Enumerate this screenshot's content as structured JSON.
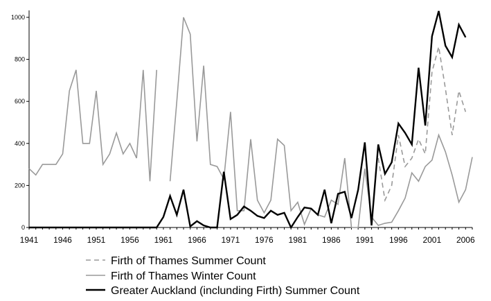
{
  "chart_data": {
    "type": "line",
    "title": "",
    "xlabel": "",
    "ylabel": "",
    "xlim": [
      1941,
      2007
    ],
    "ylim": [
      0,
      1000
    ],
    "y_ticks": [
      0,
      200,
      400,
      600,
      800,
      1000
    ],
    "y_tick_labels": [
      "0",
      "200",
      "400",
      "600",
      "800",
      "1000"
    ],
    "x_ticks": [
      1941,
      1946,
      1951,
      1956,
      1961,
      1966,
      1971,
      1976,
      1981,
      1986,
      1991,
      1996,
      2001,
      2006
    ],
    "x_tick_labels": [
      "1941",
      "1946",
      "1951",
      "1956",
      "1961",
      "1966",
      "1971",
      "1976",
      "1981",
      "1986",
      "1991",
      "1996",
      "2001",
      "2006"
    ],
    "grid": false,
    "legend_position": "bottom",
    "series": [
      {
        "name": "Firth of Thames Summer Count",
        "color": "#999999",
        "dash": "dashed",
        "points": [
          [
            1993,
            330
          ],
          [
            1994,
            130
          ],
          [
            1995,
            200
          ],
          [
            1996,
            440
          ],
          [
            1997,
            290
          ],
          [
            1998,
            330
          ],
          [
            1999,
            420
          ],
          [
            2000,
            350
          ],
          [
            2001,
            740
          ],
          [
            2002,
            860
          ],
          [
            2003,
            660
          ],
          [
            2004,
            440
          ],
          [
            2005,
            650
          ],
          [
            2006,
            550
          ]
        ]
      },
      {
        "name": "Firth of Thames Winter Count",
        "color": "#999999",
        "dash": "solid",
        "segments": [
          [
            [
              1941,
              280
            ],
            [
              1942,
              250
            ],
            [
              1943,
              300
            ],
            [
              1944,
              300
            ],
            [
              1945,
              300
            ],
            [
              1946,
              350
            ],
            [
              1947,
              650
            ],
            [
              1948,
              750
            ],
            [
              1949,
              400
            ],
            [
              1950,
              400
            ],
            [
              1951,
              650
            ],
            [
              1952,
              300
            ],
            [
              1953,
              350
            ],
            [
              1954,
              450
            ],
            [
              1955,
              350
            ],
            [
              1956,
              400
            ],
            [
              1957,
              330
            ],
            [
              1958,
              750
            ],
            [
              1959,
              220
            ],
            [
              1960,
              750
            ]
          ],
          [
            [
              1962,
              220
            ],
            [
              1963,
              600
            ],
            [
              1964,
              1000
            ],
            [
              1965,
              920
            ],
            [
              1966,
              410
            ],
            [
              1967,
              770
            ],
            [
              1968,
              300
            ],
            [
              1969,
              290
            ],
            [
              1970,
              230
            ],
            [
              1971,
              550
            ],
            [
              1972,
              80
            ],
            [
              1973,
              80
            ],
            [
              1974,
              420
            ],
            [
              1975,
              130
            ],
            [
              1976,
              70
            ],
            [
              1977,
              130
            ],
            [
              1978,
              420
            ],
            [
              1979,
              390
            ],
            [
              1980,
              80
            ],
            [
              1981,
              120
            ],
            [
              1982,
              15
            ],
            [
              1983,
              90
            ],
            [
              1984,
              60
            ],
            [
              1985,
              50
            ],
            [
              1986,
              130
            ],
            [
              1987,
              110
            ],
            [
              1988,
              330
            ],
            [
              1989,
              0
            ],
            [
              1990,
              0
            ],
            [
              1991,
              280
            ],
            [
              1992,
              50
            ],
            [
              1993,
              10
            ],
            [
              1994,
              20
            ],
            [
              1995,
              25
            ],
            [
              1996,
              80
            ],
            [
              1997,
              140
            ],
            [
              1998,
              260
            ],
            [
              1999,
              220
            ],
            [
              2000,
              290
            ],
            [
              2001,
              320
            ],
            [
              2002,
              440
            ],
            [
              2003,
              360
            ],
            [
              2004,
              250
            ],
            [
              2005,
              120
            ],
            [
              2006,
              180
            ],
            [
              2007,
              335
            ]
          ]
        ]
      },
      {
        "name": "Greater Auckland (inclunding Firth) Summer Count",
        "color": "#000000",
        "dash": "solid",
        "points": [
          [
            1941,
            0
          ],
          [
            1942,
            0
          ],
          [
            1943,
            0
          ],
          [
            1944,
            0
          ],
          [
            1945,
            0
          ],
          [
            1946,
            0
          ],
          [
            1947,
            0
          ],
          [
            1948,
            0
          ],
          [
            1949,
            0
          ],
          [
            1950,
            0
          ],
          [
            1951,
            0
          ],
          [
            1952,
            0
          ],
          [
            1953,
            0
          ],
          [
            1954,
            0
          ],
          [
            1955,
            0
          ],
          [
            1956,
            0
          ],
          [
            1957,
            0
          ],
          [
            1958,
            0
          ],
          [
            1959,
            0
          ],
          [
            1960,
            0
          ],
          [
            1961,
            50
          ],
          [
            1962,
            150
          ],
          [
            1963,
            60
          ],
          [
            1964,
            180
          ],
          [
            1965,
            5
          ],
          [
            1966,
            30
          ],
          [
            1967,
            10
          ],
          [
            1968,
            0
          ],
          [
            1969,
            0
          ],
          [
            1970,
            265
          ],
          [
            1971,
            40
          ],
          [
            1972,
            60
          ],
          [
            1973,
            100
          ],
          [
            1974,
            80
          ],
          [
            1975,
            55
          ],
          [
            1976,
            45
          ],
          [
            1977,
            80
          ],
          [
            1978,
            60
          ],
          [
            1979,
            70
          ],
          [
            1980,
            0
          ],
          [
            1981,
            50
          ],
          [
            1982,
            95
          ],
          [
            1983,
            90
          ],
          [
            1984,
            60
          ],
          [
            1985,
            180
          ],
          [
            1986,
            20
          ],
          [
            1987,
            160
          ],
          [
            1988,
            170
          ],
          [
            1989,
            45
          ],
          [
            1990,
            180
          ],
          [
            1991,
            405
          ],
          [
            1992,
            10
          ],
          [
            1993,
            395
          ],
          [
            1994,
            255
          ],
          [
            1995,
            310
          ],
          [
            1996,
            495
          ],
          [
            1997,
            450
          ],
          [
            1998,
            395
          ],
          [
            1999,
            760
          ],
          [
            2000,
            485
          ],
          [
            2001,
            910
          ],
          [
            2002,
            1030
          ],
          [
            2003,
            865
          ],
          [
            2004,
            810
          ],
          [
            2005,
            965
          ],
          [
            2006,
            905
          ]
        ]
      }
    ]
  }
}
